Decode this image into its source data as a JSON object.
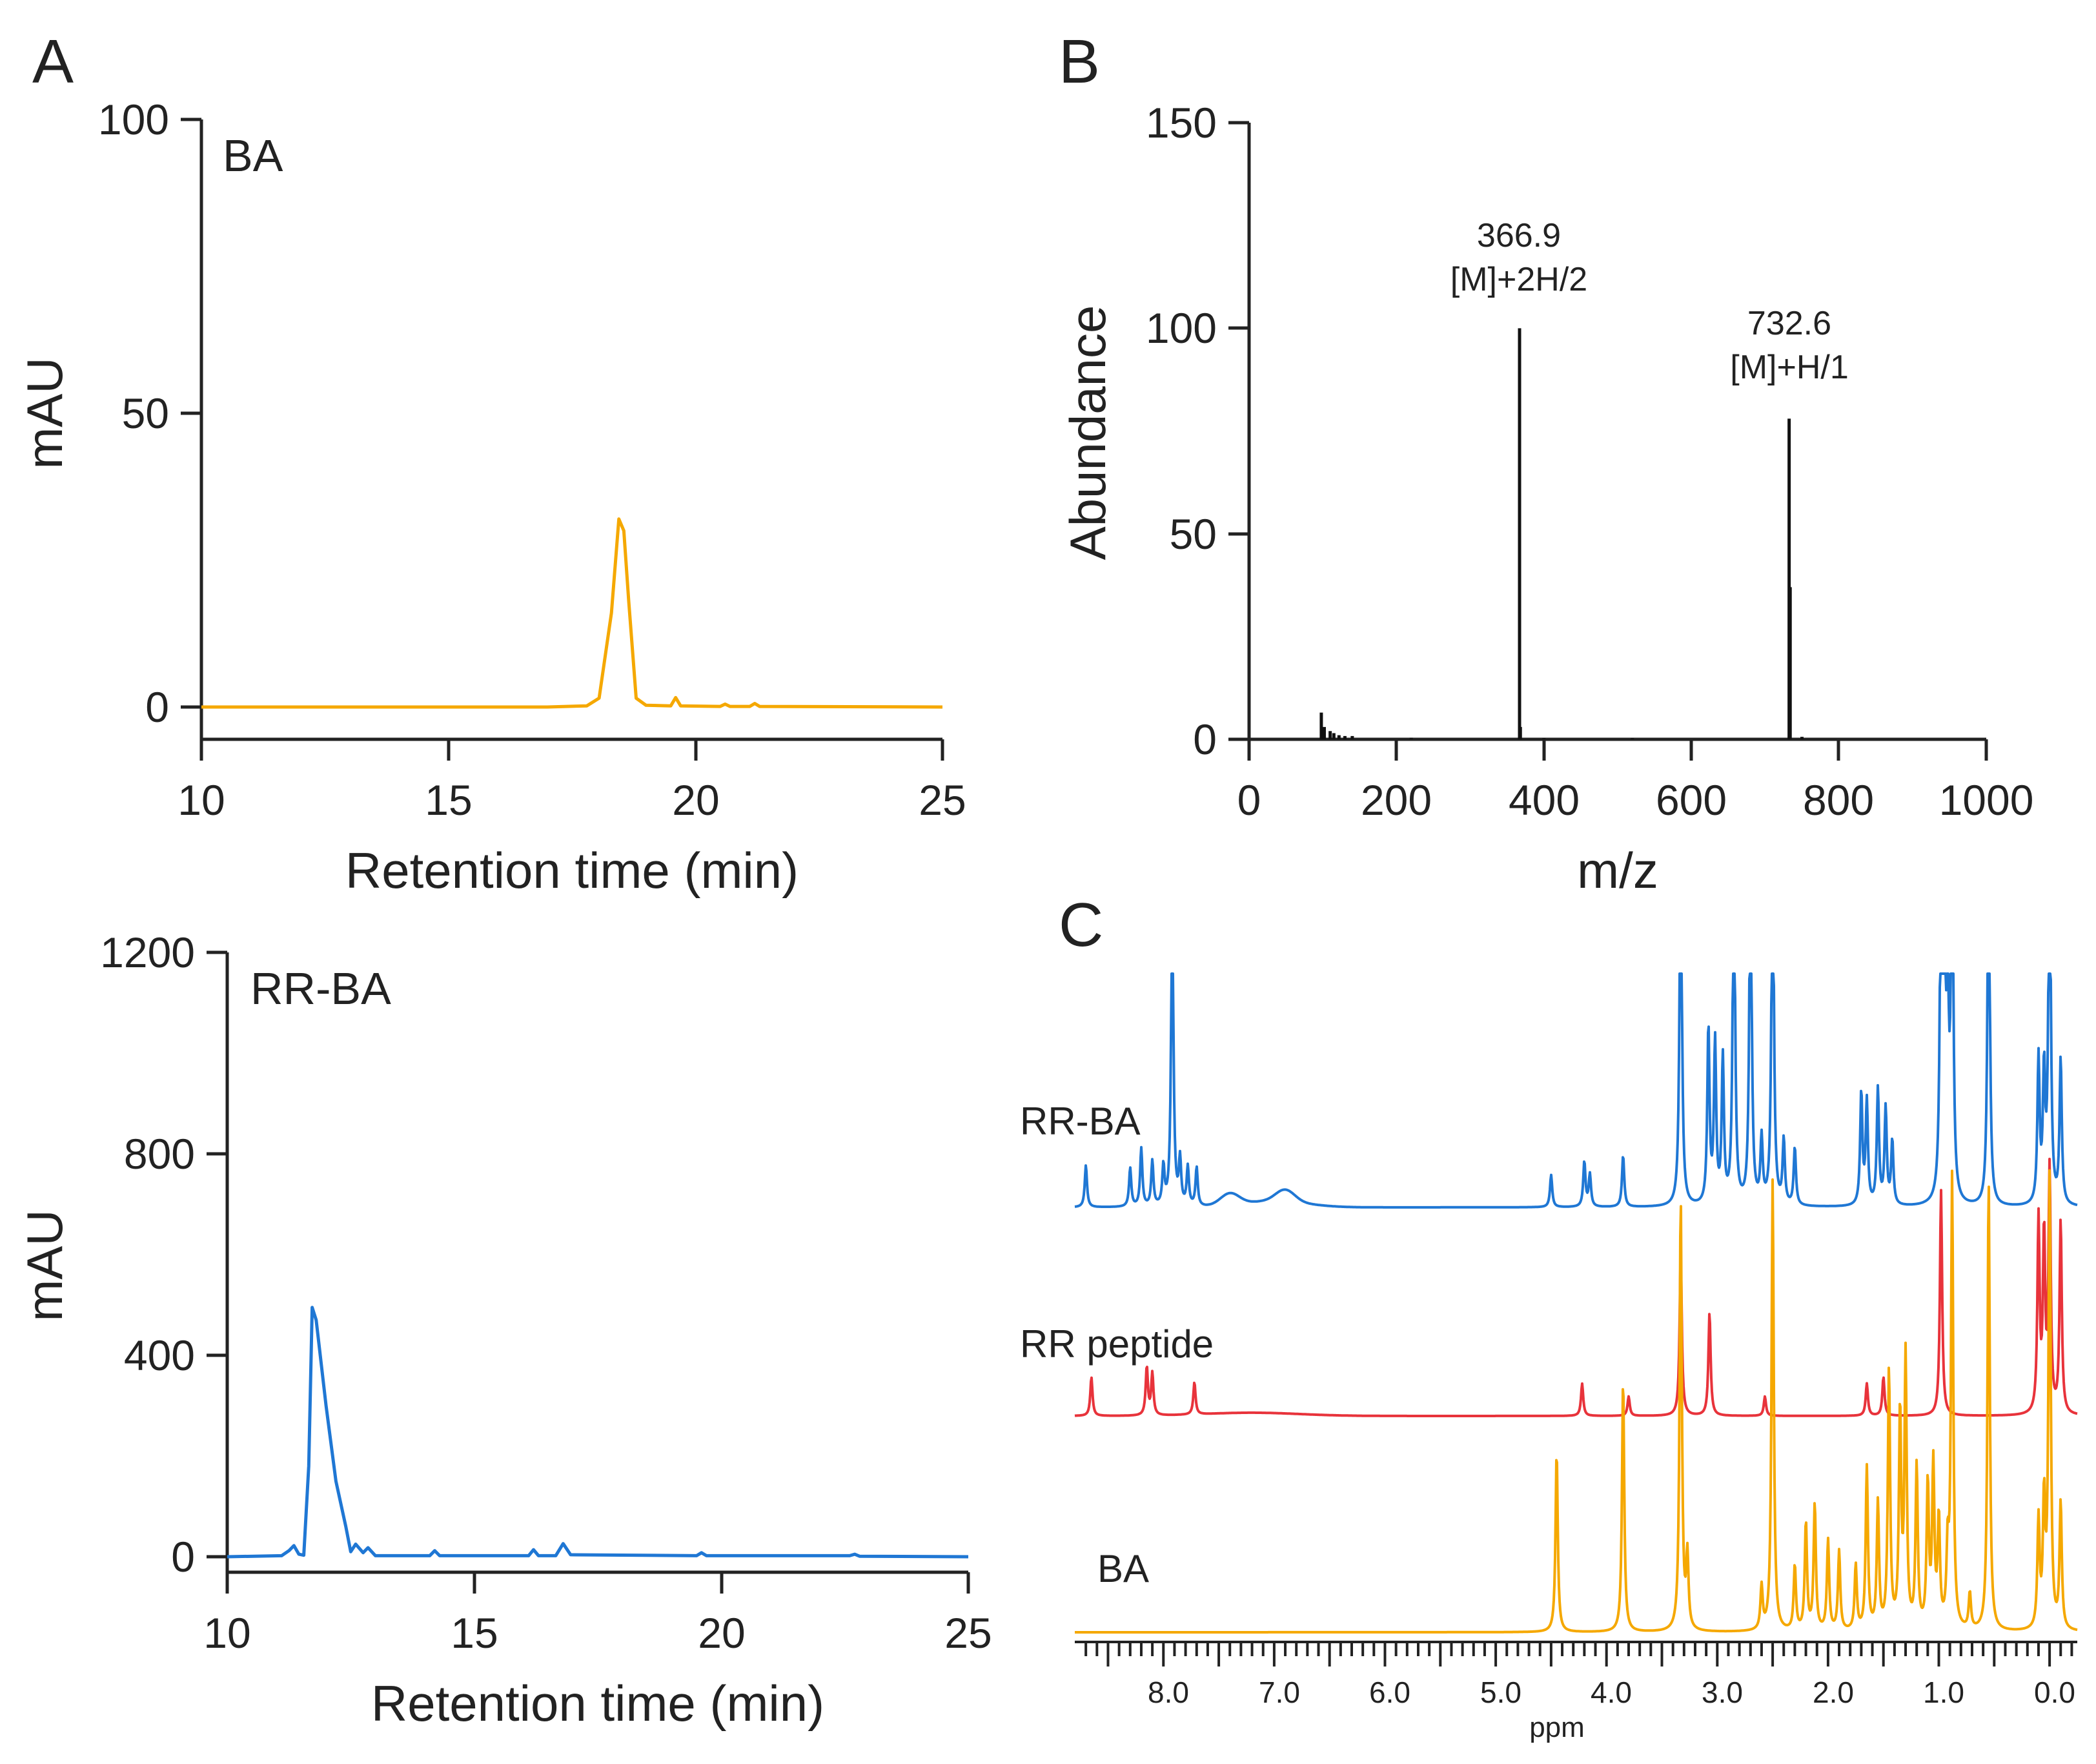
{
  "panels": {
    "A": "A",
    "B": "B",
    "C": "C"
  },
  "hplc_ba": {
    "label": "BA",
    "color": "#f5a800",
    "chart_data": {
      "type": "line",
      "title": "BA",
      "xlabel": "Retention time (min)",
      "ylabel": "mAU",
      "xlim": [
        10,
        25
      ],
      "ylim": [
        0,
        100
      ],
      "xticks": [
        10,
        15,
        20,
        25
      ],
      "yticks": [
        0,
        50,
        100
      ],
      "x": [
        10,
        17.0,
        17.8,
        18.05,
        18.3,
        18.45,
        18.55,
        18.65,
        18.8,
        19.0,
        19.5,
        19.6,
        19.7,
        20.5,
        20.6,
        20.7,
        21.1,
        21.2,
        21.3,
        25
      ],
      "y": [
        0,
        0,
        0.2,
        1.5,
        16,
        32,
        30,
        18,
        1.5,
        0.3,
        0.2,
        1.6,
        0.2,
        0.1,
        0.5,
        0.1,
        0.1,
        0.6,
        0.1,
        0
      ]
    }
  },
  "hplc_rrba": {
    "label": "RR-BA",
    "color": "#1f77d4",
    "chart_data": {
      "type": "line",
      "title": "RR-BA",
      "xlabel": "Retention time (min)",
      "ylabel": "mAU",
      "xlim": [
        10,
        25
      ],
      "ylim": [
        0,
        1200
      ],
      "xticks": [
        10,
        15,
        20,
        25
      ],
      "yticks": [
        0,
        400,
        800,
        1200
      ],
      "x": [
        10,
        11.1,
        11.25,
        11.35,
        11.45,
        11.55,
        11.65,
        11.72,
        11.8,
        12.0,
        12.2,
        12.4,
        12.5,
        12.6,
        12.75,
        12.85,
        13.0,
        14.1,
        14.2,
        14.3,
        16.1,
        16.2,
        16.3,
        16.65,
        16.8,
        16.95,
        19.5,
        19.6,
        19.7,
        22.6,
        22.7,
        22.8,
        25
      ],
      "y": [
        0,
        2,
        12,
        22,
        5,
        3,
        180,
        495,
        470,
        300,
        150,
        60,
        10,
        25,
        8,
        18,
        2,
        2,
        12,
        2,
        2,
        14,
        2,
        2,
        26,
        4,
        2,
        8,
        2,
        2,
        5,
        1,
        0
      ]
    }
  },
  "ms": {
    "label_y": "Abundance",
    "label_x": "m/z",
    "peak1_mz": "366.9",
    "peak1_ion": "[M]+2H/2",
    "peak2_mz": "732.6",
    "peak2_ion": "[M]+H/1",
    "chart_data": {
      "type": "bar",
      "title": "",
      "xlabel": "m/z",
      "ylabel": "Abundance",
      "xlim": [
        0,
        1000
      ],
      "ylim": [
        0,
        150
      ],
      "xticks": [
        0,
        200,
        400,
        600,
        800,
        1000
      ],
      "yticks": [
        0,
        50,
        100,
        150
      ],
      "x": [
        98,
        102,
        110,
        115,
        122,
        130,
        140,
        220,
        366.9,
        368,
        400,
        520,
        732.6,
        734,
        750
      ],
      "values": [
        6.5,
        3,
        2,
        1.5,
        1,
        0.8,
        0.8,
        0.4,
        100,
        3,
        0.3,
        0.3,
        78,
        37,
        0.6
      ],
      "annotations": [
        {
          "x": 366.9,
          "text": "366.9 [M]+2H/2"
        },
        {
          "x": 732.6,
          "text": "732.6 [M]+H/1"
        }
      ]
    }
  },
  "nmr": {
    "xlabel": "ppm",
    "xticks": [
      "8.0",
      "7.0",
      "6.0",
      "5.0",
      "4.0",
      "3.0",
      "2.0",
      "1.0",
      "0.0"
    ],
    "traces": [
      {
        "label": "RR-BA",
        "color": "#1f77d4"
      },
      {
        "label": "RR peptide",
        "color": "#e8333b"
      },
      {
        "label": "BA",
        "color": "#f5a800"
      }
    ],
    "chart_data": {
      "type": "line",
      "xlabel": "ppm",
      "xlim": [
        8.8,
        -0.25
      ],
      "series": [
        {
          "name": "RR-BA",
          "peaks": [
            [
              8.7,
              0.13
            ],
            [
              8.3,
              0.12
            ],
            [
              8.2,
              0.18
            ],
            [
              8.1,
              0.14
            ],
            [
              8.0,
              0.12
            ],
            [
              7.92,
              1.0
            ],
            [
              7.85,
              0.14
            ],
            [
              7.78,
              0.12
            ],
            [
              7.7,
              0.12
            ],
            [
              4.5,
              0.1
            ],
            [
              4.2,
              0.14
            ],
            [
              4.15,
              0.1
            ],
            [
              3.85,
              0.16
            ],
            [
              3.33,
              1.25
            ],
            [
              3.08,
              0.55
            ],
            [
              3.02,
              0.5
            ],
            [
              2.95,
              0.45
            ],
            [
              2.85,
              1.2
            ],
            [
              2.7,
              1.2
            ],
            [
              2.6,
              0.2
            ],
            [
              2.5,
              1.25
            ],
            [
              2.4,
              0.2
            ],
            [
              2.3,
              0.18
            ],
            [
              1.7,
              0.35
            ],
            [
              1.65,
              0.32
            ],
            [
              1.55,
              0.36
            ],
            [
              1.48,
              0.3
            ],
            [
              1.42,
              0.2
            ],
            [
              0.98,
              1.1
            ],
            [
              0.95,
              0.8
            ],
            [
              0.92,
              0.6
            ],
            [
              0.88,
              1.25
            ],
            [
              0.55,
              1.25
            ],
            [
              0.1,
              0.45
            ],
            [
              0.05,
              0.4
            ],
            [
              0.0,
              1.25
            ],
            [
              -0.1,
              0.45
            ]
          ]
        },
        {
          "name": "RR peptide",
          "peaks": [
            [
              8.65,
              0.12
            ],
            [
              8.15,
              0.15
            ],
            [
              8.1,
              0.13
            ],
            [
              7.72,
              0.1
            ],
            [
              4.22,
              0.1
            ],
            [
              3.8,
              0.06
            ],
            [
              3.33,
              0.5
            ],
            [
              3.07,
              0.32
            ],
            [
              2.57,
              0.06
            ],
            [
              1.65,
              0.1
            ],
            [
              1.5,
              0.12
            ],
            [
              0.98,
              0.7
            ],
            [
              0.1,
              0.6
            ],
            [
              0.05,
              0.55
            ],
            [
              0.0,
              0.75
            ],
            [
              -0.1,
              0.6
            ]
          ]
        },
        {
          "name": "BA",
          "peaks": [
            [
              4.45,
              0.5
            ],
            [
              3.85,
              0.7
            ],
            [
              3.33,
              1.2
            ],
            [
              3.27,
              0.2
            ],
            [
              2.6,
              0.12
            ],
            [
              2.5,
              1.25
            ],
            [
              2.3,
              0.18
            ],
            [
              2.2,
              0.3
            ],
            [
              2.12,
              0.35
            ],
            [
              2.0,
              0.25
            ],
            [
              1.9,
              0.22
            ],
            [
              1.75,
              0.18
            ],
            [
              1.65,
              0.45
            ],
            [
              1.55,
              0.35
            ],
            [
              1.45,
              0.72
            ],
            [
              1.35,
              0.6
            ],
            [
              1.3,
              0.75
            ],
            [
              1.2,
              0.45
            ],
            [
              1.1,
              0.4
            ],
            [
              1.05,
              0.45
            ],
            [
              1.0,
              0.3
            ],
            [
              0.92,
              0.2
            ],
            [
              0.88,
              1.25
            ],
            [
              0.72,
              0.1
            ],
            [
              0.55,
              1.25
            ],
            [
              0.1,
              0.3
            ],
            [
              0.05,
              0.35
            ],
            [
              0.0,
              1.25
            ],
            [
              -0.1,
              0.35
            ]
          ]
        }
      ]
    }
  }
}
